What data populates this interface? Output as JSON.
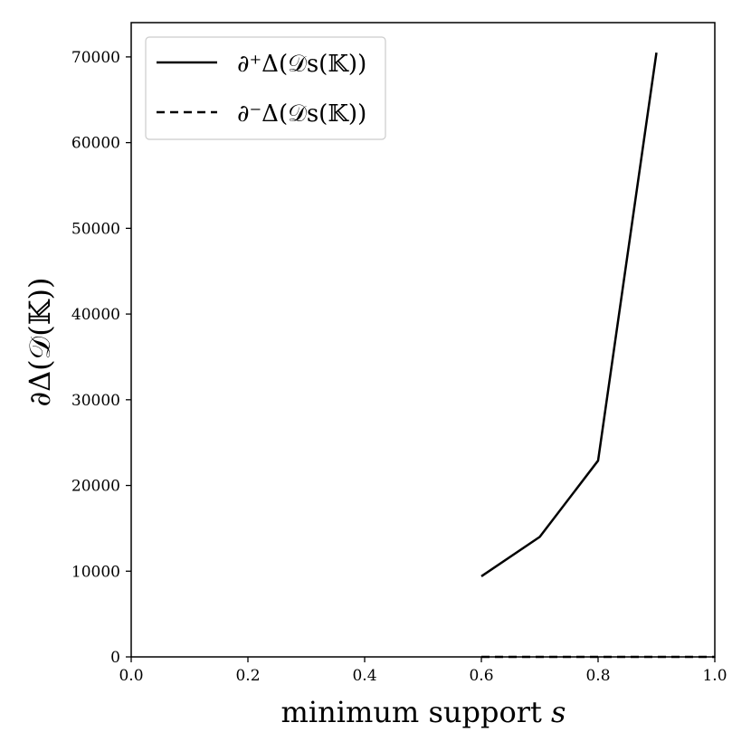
{
  "chart_data": {
    "type": "line",
    "x": [
      0.6,
      0.7,
      0.8,
      0.9,
      1.0
    ],
    "series": [
      {
        "name": "∂⁺Δ(𝒟s(𝕂))",
        "style": "solid",
        "x": [
          0.6,
          0.7,
          0.8,
          0.9
        ],
        "values": [
          9400,
          14000,
          22900,
          70500
        ]
      },
      {
        "name": "∂⁻Δ(𝒟s(𝕂))",
        "style": "dashed",
        "x": [
          0.6,
          0.7,
          0.8,
          0.9,
          1.0
        ],
        "values": [
          0,
          0,
          0,
          0,
          0
        ]
      }
    ],
    "xlabel": "minimum support s",
    "ylabel": "∂Δ(𝒟(𝕂))",
    "xlim": [
      0.0,
      1.0
    ],
    "ylim": [
      0,
      74000
    ],
    "xticks": [
      "0.0",
      "0.2",
      "0.4",
      "0.6",
      "0.8",
      "1.0"
    ],
    "yticks": [
      "0",
      "10000",
      "20000",
      "30000",
      "40000",
      "50000",
      "60000",
      "70000"
    ],
    "grid": false,
    "legend_position": "top-left",
    "line_color": "#000000"
  },
  "text": {
    "xlabel_main": "minimum support ",
    "xlabel_var": "s",
    "ylabel": "∂Δ(𝒟(𝕂))",
    "legend_1": "∂⁺Δ(𝒟s(𝕂))",
    "legend_2": "∂⁻Δ(𝒟s(𝕂))"
  }
}
